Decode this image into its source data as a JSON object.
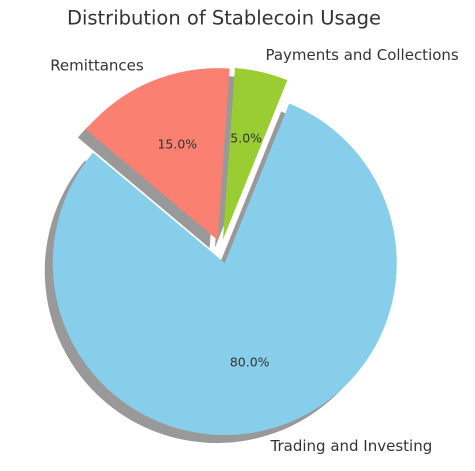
{
  "chart_data": {
    "type": "pie",
    "title": "Distribution of Stablecoin Usage",
    "categories": [
      "Trading and Investing",
      "Payments and Collections",
      "Remittances"
    ],
    "values": [
      80,
      5,
      15
    ],
    "value_labels": [
      "80.0%",
      "5.0%",
      "15.0%"
    ],
    "colors": [
      "#87ceeb",
      "#9acd32",
      "#fa8072"
    ],
    "shadow": true
  }
}
